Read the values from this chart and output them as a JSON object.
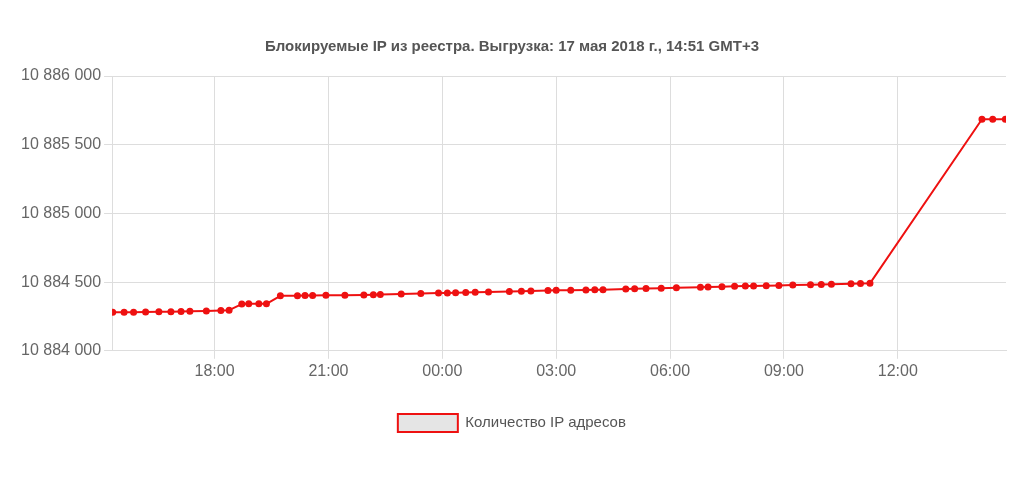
{
  "chart_data": {
    "type": "line",
    "title": "Блокируемые IP из реестра. Выгрузка: 17 мая 2018 г., 14:51 GMT+3",
    "xlim": [
      "2018-05-16T15:18",
      "2018-05-17T14:51"
    ],
    "xticks": [
      {
        "value": "2018-05-16T18:00",
        "label": "18:00"
      },
      {
        "value": "2018-05-16T21:00",
        "label": "21:00"
      },
      {
        "value": "2018-05-17T00:00",
        "label": "00:00"
      },
      {
        "value": "2018-05-17T03:00",
        "label": "03:00"
      },
      {
        "value": "2018-05-17T06:00",
        "label": "06:00"
      },
      {
        "value": "2018-05-17T09:00",
        "label": "09:00"
      },
      {
        "value": "2018-05-17T12:00",
        "label": "12:00"
      }
    ],
    "ylim": [
      10884000,
      10886000
    ],
    "yticks": [
      {
        "value": 10884000,
        "label": "10 884 000"
      },
      {
        "value": 10884500,
        "label": "10 884 500"
      },
      {
        "value": 10885000,
        "label": "10 885 000"
      },
      {
        "value": 10885500,
        "label": "10 885 500"
      },
      {
        "value": 10886000,
        "label": "10 886 000"
      }
    ],
    "grid": true,
    "legend": "bottom",
    "marker": "circle",
    "line_style": "solid",
    "series": [
      {
        "name": "Количество IP адресов",
        "color": "#ee1111",
        "x": [
          "2018-05-16T15:19",
          "2018-05-16T15:37",
          "2018-05-16T15:52",
          "2018-05-16T16:11",
          "2018-05-16T16:32",
          "2018-05-16T16:51",
          "2018-05-16T17:07",
          "2018-05-16T17:21",
          "2018-05-16T17:47",
          "2018-05-16T18:10",
          "2018-05-16T18:23",
          "2018-05-16T18:43",
          "2018-05-16T18:54",
          "2018-05-16T19:10",
          "2018-05-16T19:22",
          "2018-05-16T19:44",
          "2018-05-16T20:11",
          "2018-05-16T20:23",
          "2018-05-16T20:35",
          "2018-05-16T20:56",
          "2018-05-16T21:26",
          "2018-05-16T21:56",
          "2018-05-16T22:11",
          "2018-05-16T22:22",
          "2018-05-16T22:55",
          "2018-05-16T23:26",
          "2018-05-16T23:54",
          "2018-05-17T00:08",
          "2018-05-17T00:21",
          "2018-05-17T00:37",
          "2018-05-17T00:52",
          "2018-05-17T01:13",
          "2018-05-17T01:46",
          "2018-05-17T02:05",
          "2018-05-17T02:20",
          "2018-05-17T02:47",
          "2018-05-17T03:00",
          "2018-05-17T03:23",
          "2018-05-17T03:47",
          "2018-05-17T04:01",
          "2018-05-17T04:14",
          "2018-05-17T04:50",
          "2018-05-17T05:04",
          "2018-05-17T05:22",
          "2018-05-17T05:46",
          "2018-05-17T06:10",
          "2018-05-17T06:48",
          "2018-05-17T07:00",
          "2018-05-17T07:22",
          "2018-05-17T07:42",
          "2018-05-17T07:59",
          "2018-05-17T08:12",
          "2018-05-17T08:32",
          "2018-05-17T08:52",
          "2018-05-17T09:14",
          "2018-05-17T09:42",
          "2018-05-17T09:59",
          "2018-05-17T10:15",
          "2018-05-17T10:46",
          "2018-05-17T11:01",
          "2018-05-17T11:16",
          "2018-05-17T14:13",
          "2018-05-17T14:30",
          "2018-05-17T14:50"
        ],
        "values": [
          10884280,
          10884280,
          10884280,
          10884282,
          10884284,
          10884285,
          10884286,
          10884287,
          10884290,
          10884294,
          10884296,
          10884340,
          10884342,
          10884342,
          10884342,
          10884400,
          10884401,
          10884402,
          10884403,
          10884404,
          10884405,
          10884407,
          10884408,
          10884409,
          10884413,
          10884417,
          10884420,
          10884421,
          10884423,
          10884425,
          10884426,
          10884428,
          10884432,
          10884434,
          10884436,
          10884438,
          10884440,
          10884441,
          10884443,
          10884444,
          10884445,
          10884449,
          10884451,
          10884453,
          10884456,
          10884459,
          10884463,
          10884465,
          10884467,
          10884469,
          10884471,
          10884472,
          10884474,
          10884476,
          10884478,
          10884481,
          10884483,
          10884485,
          10884488,
          10884490,
          10884491,
          10885685,
          10885685,
          10885685
        ]
      }
    ]
  }
}
